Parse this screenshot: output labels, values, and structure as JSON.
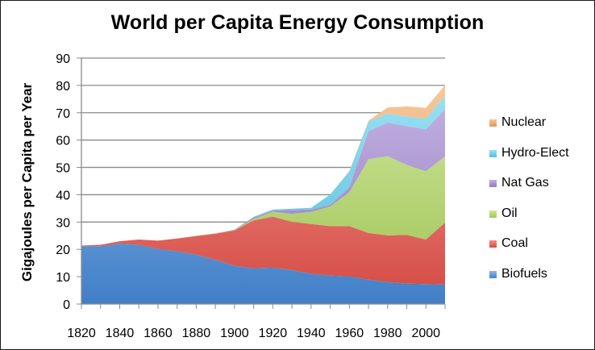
{
  "chart_data": {
    "type": "area",
    "stacked": true,
    "title": "World per Capita Energy Consumption",
    "xlabel": "",
    "ylabel": "Gigajoules per Capita per Year",
    "xlim": [
      1820,
      2010
    ],
    "ylim": [
      0,
      90
    ],
    "y_ticks": [
      0,
      10,
      20,
      30,
      40,
      50,
      60,
      70,
      80,
      90
    ],
    "x_tick_labels": [
      1820,
      1840,
      1860,
      1880,
      1900,
      1920,
      1940,
      1960,
      1980,
      2000
    ],
    "grid": "horizontal",
    "legend_position": "right",
    "x": [
      1820,
      1830,
      1840,
      1850,
      1860,
      1870,
      1880,
      1890,
      1900,
      1910,
      1920,
      1930,
      1940,
      1950,
      1960,
      1970,
      1980,
      1990,
      2000,
      2010
    ],
    "series": [
      {
        "name": "Biofuels",
        "color": "#4a90e2",
        "values": [
          21.2,
          21.2,
          22.1,
          21.7,
          20.2,
          19.3,
          18.1,
          16.2,
          14.0,
          13.1,
          13.3,
          12.4,
          11.1,
          10.4,
          10.1,
          8.9,
          8.0,
          7.5,
          7.3,
          7.1
        ]
      },
      {
        "name": "Coal",
        "color": "#f0534a",
        "values": [
          0.2,
          0.5,
          0.9,
          1.9,
          3.0,
          4.7,
          6.8,
          9.5,
          12.9,
          17.5,
          18.7,
          17.7,
          18.2,
          18.1,
          18.4,
          17.1,
          17.1,
          17.8,
          16.3,
          22.7
        ]
      },
      {
        "name": "Oil",
        "color": "#b3dc5e",
        "values": [
          0,
          0,
          0,
          0,
          0,
          0,
          0.05,
          0.2,
          0.2,
          0.6,
          1.8,
          2.9,
          4.4,
          7.2,
          12.4,
          27.0,
          29.0,
          25.6,
          25.0,
          24.2
        ]
      },
      {
        "name": "Nat Gas",
        "color": "#a386d6",
        "values": [
          0,
          0,
          0,
          0,
          0,
          0,
          0,
          0,
          0.1,
          0.5,
          0.4,
          1.4,
          0.9,
          0.6,
          1.9,
          10.3,
          12.3,
          14.2,
          15.3,
          17.3
        ]
      },
      {
        "name": "Hydro-Elect",
        "color": "#5bd3f5",
        "values": [
          0,
          0,
          0,
          0,
          0,
          0,
          0,
          0,
          0,
          0.2,
          0.4,
          0.5,
          0.6,
          3.8,
          5.6,
          3.5,
          3.3,
          3.5,
          3.9,
          4.9
        ]
      },
      {
        "name": "Nuclear",
        "color": "#f7a859",
        "values": [
          0,
          0,
          0,
          0,
          0,
          0,
          0,
          0,
          0,
          0,
          0,
          0,
          0,
          0,
          0.3,
          0.3,
          2.2,
          3.7,
          4.0,
          3.9
        ]
      }
    ]
  },
  "legend": {
    "items": [
      {
        "label": "Nuclear",
        "color": "#f7a859"
      },
      {
        "label": "Hydro-Elect",
        "color": "#5bd3f5"
      },
      {
        "label": "Nat Gas",
        "color": "#a386d6"
      },
      {
        "label": "Oil",
        "color": "#b3dc5e"
      },
      {
        "label": "Coal",
        "color": "#f0534a"
      },
      {
        "label": "Biofuels",
        "color": "#4a90e2"
      }
    ]
  }
}
